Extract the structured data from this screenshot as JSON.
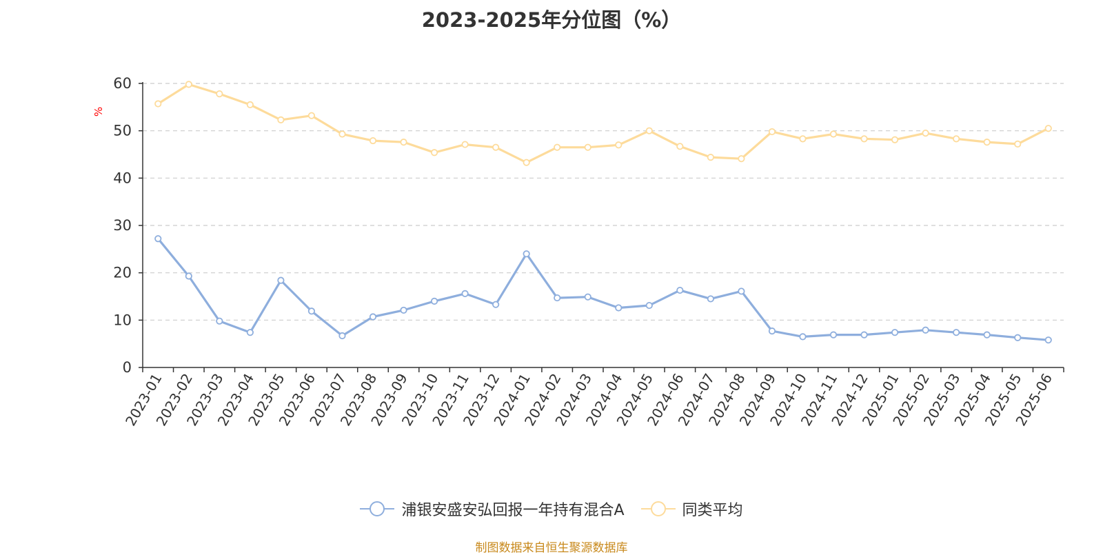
{
  "chart_data": {
    "type": "line",
    "title": "2023-2025年分位图（%）",
    "ylabel": "%",
    "xlabel": "",
    "ylim": [
      0,
      60
    ],
    "yticks": [
      0,
      10,
      20,
      30,
      40,
      50,
      60
    ],
    "grid": true,
    "legend_position": "bottom",
    "categories": [
      "2023-01",
      "2023-02",
      "2023-03",
      "2023-04",
      "2023-05",
      "2023-06",
      "2023-07",
      "2023-08",
      "2023-09",
      "2023-10",
      "2023-11",
      "2023-12",
      "2024-01",
      "2024-02",
      "2024-03",
      "2024-04",
      "2024-05",
      "2024-06",
      "2024-07",
      "2024-08",
      "2024-09",
      "2024-10",
      "2024-11",
      "2024-12",
      "2025-01",
      "2025-02",
      "2025-03",
      "2025-04",
      "2025-05",
      "2025-06"
    ],
    "series": [
      {
        "name": "浦银安盛安弘回报一年持有混合A",
        "color": "#8eaedd",
        "values": [
          27.2,
          19.3,
          9.8,
          7.4,
          18.4,
          11.9,
          6.7,
          10.7,
          12.1,
          14.0,
          15.6,
          13.3,
          24.0,
          14.7,
          14.9,
          12.6,
          13.1,
          16.3,
          14.5,
          16.1,
          7.7,
          6.5,
          6.9,
          6.9,
          7.4,
          7.9,
          7.4,
          6.9,
          6.3,
          5.8
        ]
      },
      {
        "name": "同类平均",
        "color": "#fddb9b",
        "values": [
          55.7,
          59.8,
          57.8,
          55.5,
          52.3,
          53.2,
          49.3,
          47.9,
          47.6,
          45.4,
          47.1,
          46.5,
          43.3,
          46.5,
          46.5,
          47.0,
          50.0,
          46.7,
          44.4,
          44.1,
          49.8,
          48.3,
          49.3,
          48.3,
          48.1,
          49.5,
          48.3,
          47.6,
          47.2,
          50.5
        ]
      }
    ]
  },
  "source_note": "制图数据来自恒生聚源数据库",
  "colors": {
    "axis": "#333333",
    "grid": "#cccccc",
    "ylabel": "#ff0000",
    "source": "#c8891c"
  }
}
